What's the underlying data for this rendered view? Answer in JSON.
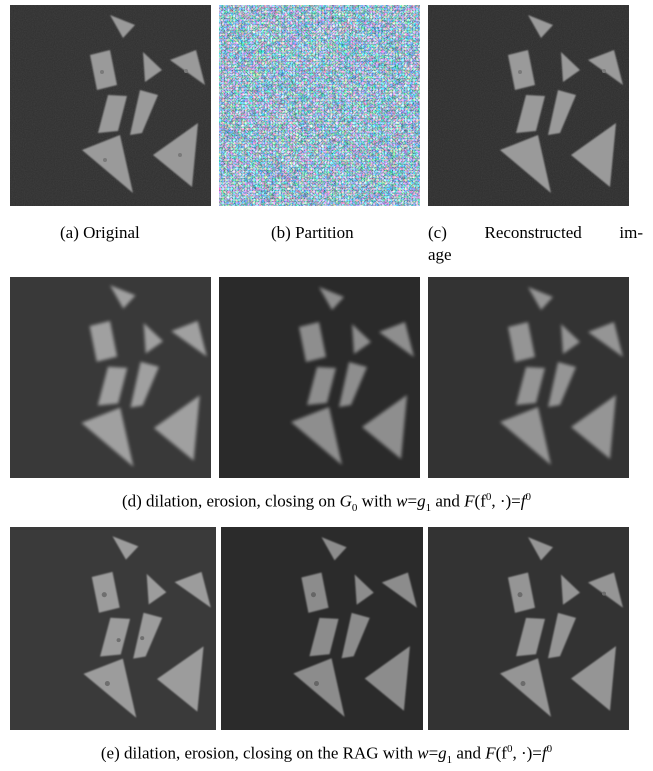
{
  "figure": {
    "row1": {
      "captions": {
        "a": "(a) Original",
        "b": "(b) Partition",
        "c_line1_left": "(c)",
        "c_line1_mid": "Reconstructed",
        "c_line1_right": "im-",
        "c_line2": "age"
      }
    },
    "row2": {
      "caption_prefix": "(d) dilation, erosion, closing on ",
      "caption_G": "G",
      "caption_G_sub": "0",
      "caption_with": " with ",
      "caption_w": "w",
      "caption_eq": "=",
      "caption_g": "g",
      "caption_g_sub": "1",
      "caption_and": " and ",
      "caption_F": "F",
      "caption_args": "(f",
      "caption_sup0": "0",
      "caption_args2": ", ·)=",
      "caption_f": "f",
      "caption_sup1": "0"
    },
    "row3": {
      "caption_prefix": "(e) dilation, erosion, closing on the RAG with ",
      "caption_w": "w",
      "caption_eq": "=",
      "caption_g": "g",
      "caption_g_sub": "1",
      "caption_and": " and ",
      "caption_F": "F",
      "caption_args": "(f",
      "caption_sup0": "0",
      "caption_args2": ", ·)=",
      "caption_f": "f",
      "caption_sup1": "0"
    },
    "colors": {
      "background_dark": "#2e2e2e",
      "background_mid": "#3a3a3a",
      "shape_light": "#9a9a9a",
      "shape_mid": "#8a8a8a"
    }
  }
}
